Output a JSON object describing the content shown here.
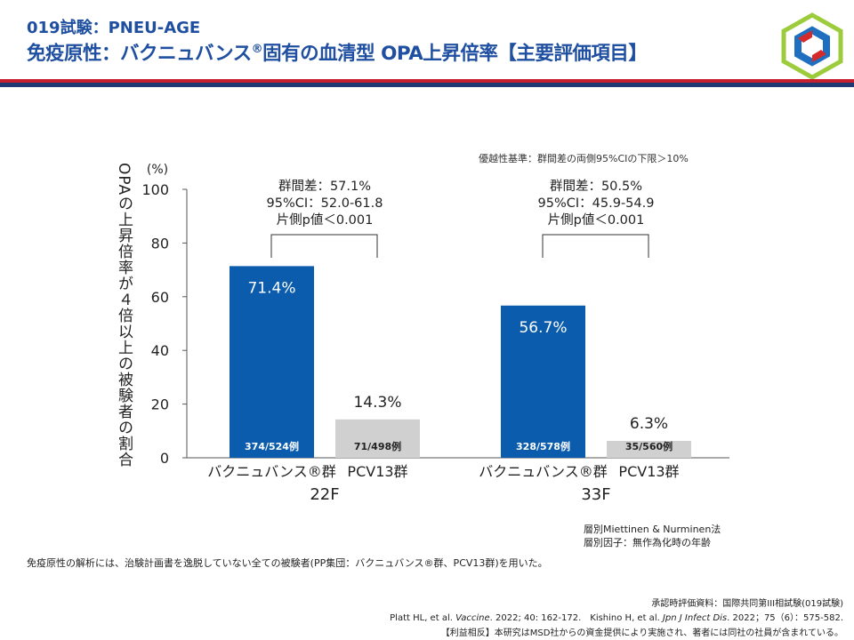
{
  "header": {
    "subtitle": "019試験：PNEU-AGE",
    "title_part1": "免疫原性：バクニュバンス",
    "title_reg": "®",
    "title_part2": "固有の血清型 OPA上昇倍率【主要評価項目】"
  },
  "criterion": "優越性基準：群間差の両側95%CIの下限＞10%",
  "y_axis_label": "OPAの上昇倍率が４倍以上の被験者の割合",
  "stats": [
    {
      "diff": "群間差：57.1%",
      "ci": "95%CI：52.0-61.8",
      "p": "片側p値＜0.001"
    },
    {
      "diff": "群間差：50.5%",
      "ci": "95%CI：45.9-54.9",
      "p": "片側p値＜0.001"
    }
  ],
  "method_note": [
    "層別Miettinen & Nurminen法",
    "層別因子：無作為化時の年齢"
  ],
  "footnote": "免疫原性の解析には、治験計画書を逸脱していない全ての被験者(PP集団：バクニュバンス®群、PCV13群)を用いた。",
  "references": {
    "line1": "承認時評価資料：国際共同第III相試験(019試験)",
    "line2a": "Platt HL, et al. ",
    "line2b": "Vaccine",
    "line2c": ". 2022; 40: 162-172.　Kishino H, et al. ",
    "line2d": "Jpn J Infect Dis",
    "line2e": ". 2022；75（6）：575-582.",
    "line3": "【利益相反】本研究はMSD社からの資金提供により実施され、著者には同社の社員が含まれている。"
  },
  "colors": {
    "primary": "#1f4fa0",
    "bar_blue": "#0b5cad",
    "bar_gray": "#d0d0d0",
    "accent_red": "#c6202e",
    "navy": "#1f3a73"
  },
  "chart_data": {
    "type": "bar",
    "unit_label": "(%)",
    "ylim": [
      0,
      100
    ],
    "yticks": [
      0,
      20,
      40,
      60,
      80,
      100
    ],
    "groups": [
      "22F",
      "33F"
    ],
    "series": [
      {
        "name": "バクニュバンス®群",
        "values": [
          71.4,
          56.7
        ],
        "value_labels": [
          "71.4%",
          "56.7%"
        ],
        "n_labels": [
          "374/524例",
          "328/578例"
        ]
      },
      {
        "name": "PCV13群",
        "values": [
          14.3,
          6.3
        ],
        "value_labels": [
          "14.3%",
          "6.3%"
        ],
        "n_labels": [
          "71/498例",
          "35/560例"
        ]
      }
    ]
  }
}
